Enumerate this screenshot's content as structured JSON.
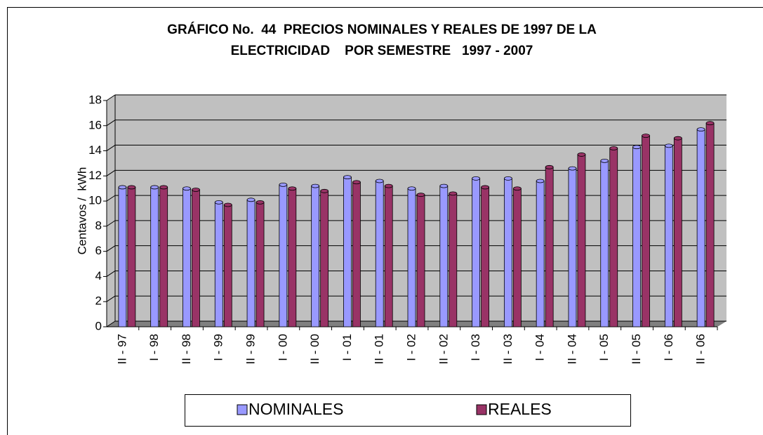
{
  "chart_data": {
    "type": "bar",
    "title": [
      "GRÁFICO No.  44  PRECIOS NOMINALES Y REALES DE 1997 DE LA",
      "ELECTRICIDAD    POR SEMESTRE   1997 - 2007"
    ],
    "y_label": "Centavos /  kWh",
    "categories": [
      "II - 97",
      "I - 98",
      "II - 98",
      "I - 99",
      "II - 99",
      "I - 00",
      "II - 00",
      "I - 01",
      "II - 01",
      "I - 02",
      "II - 02",
      "I - 03",
      "II - 03",
      "I - 04",
      "II - 04",
      "I - 05",
      "II - 05",
      "I - 06",
      "II - 06"
    ],
    "series": [
      {
        "name": "NOMINALES",
        "color": "#9999ff",
        "values": [
          11.1,
          11.1,
          11.0,
          9.9,
          10.1,
          11.3,
          11.2,
          11.9,
          11.6,
          11.0,
          11.2,
          11.8,
          11.8,
          11.6,
          12.6,
          13.2,
          14.3,
          14.4,
          15.7
        ]
      },
      {
        "name": "REALES",
        "color": "#993366",
        "values": [
          11.1,
          11.1,
          10.9,
          9.7,
          9.9,
          11.0,
          10.8,
          11.5,
          11.2,
          10.5,
          10.6,
          11.1,
          11.0,
          12.7,
          13.7,
          14.2,
          15.2,
          15.0,
          16.2
        ]
      }
    ],
    "ylim": [
      0,
      18
    ],
    "yticks": [
      0,
      2,
      4,
      6,
      8,
      10,
      12,
      14,
      16,
      18
    ],
    "grid": true,
    "legend": "bottom"
  }
}
